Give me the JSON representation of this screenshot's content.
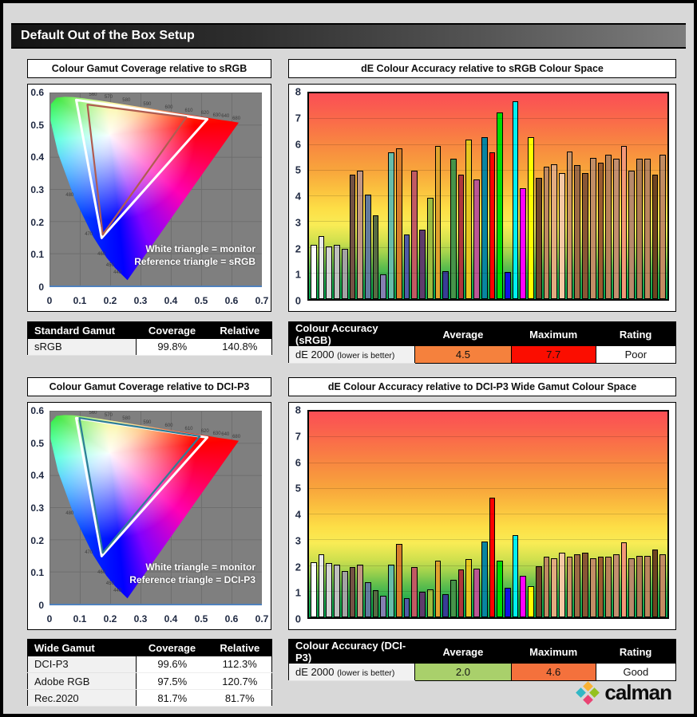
{
  "page_title": "Default Out of the Box Setup",
  "sections": [
    {
      "gamut_title": "Colour Gamut Coverage relative to sRGB",
      "accuracy_title": "dE Colour Accuracy relative to sRGB Colour Space",
      "annotation": [
        "White triangle = monitor",
        "Reference triangle = sRGB"
      ],
      "gamut_table": {
        "headers": [
          "Standard Gamut",
          "Coverage",
          "Relative"
        ],
        "rows": [
          [
            "sRGB",
            "99.8%",
            "140.8%"
          ]
        ]
      },
      "accuracy_table": {
        "headers": [
          "Colour Accuracy (sRGB)",
          "Average",
          "Maximum",
          "Rating"
        ],
        "label": "dE 2000",
        "sublabel": "(lower is better)",
        "average": "4.5",
        "average_bg": "#f5813d",
        "maximum": "7.7",
        "maximum_bg": "#fb0d00",
        "rating": "Poor"
      }
    },
    {
      "gamut_title": "Colour Gamut Coverage relative to DCI-P3",
      "accuracy_title": "dE Colour Accuracy relative to DCI-P3 Wide Gamut Colour Space",
      "annotation": [
        "White triangle = monitor",
        "Reference triangle = DCI-P3"
      ],
      "gamut_table": {
        "headers": [
          "Wide Gamut",
          "Coverage",
          "Relative"
        ],
        "rows": [
          [
            "DCI-P3",
            "99.6%",
            "112.3%"
          ],
          [
            "Adobe RGB",
            "97.5%",
            "120.7%"
          ],
          [
            "Rec.2020",
            "81.7%",
            "81.7%"
          ]
        ]
      },
      "accuracy_table": {
        "headers": [
          "Colour Accuracy (DCI-P3)",
          "Average",
          "Maximum",
          "Rating"
        ],
        "label": "dE 2000",
        "sublabel": "(lower is better)",
        "average": "2.0",
        "average_bg": "#a9d06b",
        "maximum": "4.6",
        "maximum_bg": "#f4713c",
        "rating": "Good"
      }
    }
  ],
  "logo": {
    "text": "calman",
    "diamond": {
      "top": "#f9b233",
      "right": "#95c11f",
      "bottom": "#e94373",
      "left": "#31b7c5"
    }
  },
  "cie": {
    "locus_percent": [
      [
        36.7,
        97.2
      ],
      [
        30.9,
        90.9
      ],
      [
        26.8,
        85.5
      ],
      [
        20.6,
        74.8
      ],
      [
        11.8,
        54.9
      ],
      [
        4.0,
        31.4
      ],
      [
        0.5,
        14.5
      ],
      [
        0.65,
        6.0
      ],
      [
        3.3,
        2.7
      ],
      [
        7.1,
        2.2
      ],
      [
        11.3,
        2.4
      ],
      [
        16.1,
        3.0
      ],
      [
        21.9,
        3.9
      ],
      [
        28.9,
        5.1
      ],
      [
        37.5,
        6.6
      ],
      [
        47.4,
        8.3
      ],
      [
        57.6,
        10.1
      ],
      [
        67.0,
        11.7
      ],
      [
        74.3,
        13.0
      ],
      [
        79.5,
        14.0
      ],
      [
        85.8,
        15.0
      ],
      [
        89.1,
        15.6
      ]
    ],
    "wavelength_labels": [
      [
        "560",
        20.5,
        1.2
      ],
      [
        "570",
        27.8,
        2.6
      ],
      [
        "580",
        36.2,
        4.2
      ],
      [
        "590",
        46.0,
        6.0
      ],
      [
        "600",
        56.2,
        7.8
      ],
      [
        "610",
        65.6,
        9.4
      ],
      [
        "620",
        73.2,
        10.8
      ],
      [
        "630",
        78.8,
        11.8
      ],
      [
        "640",
        82.8,
        12.6
      ],
      [
        "680",
        88.0,
        13.8
      ],
      [
        "480",
        9.5,
        53.5
      ],
      [
        "470",
        18.5,
        73.5
      ],
      [
        "460",
        24.5,
        84.0
      ],
      [
        "450",
        28.5,
        89.5
      ],
      [
        "440",
        32.0,
        93.5
      ]
    ]
  },
  "chart_data": [
    {
      "type": "area",
      "name": "cie-1976-gamut-vs-srgb",
      "title": "Colour Gamut Coverage relative to sRGB",
      "xlim": [
        0,
        0.7
      ],
      "ylim": [
        0,
        0.6
      ],
      "x_ticks": [
        "0",
        "0.1",
        "0.2",
        "0.3",
        "0.4",
        "0.5",
        "0.6",
        "0.7"
      ],
      "y_ticks": [
        "0.6",
        "0.5",
        "0.4",
        "0.3",
        "0.2",
        "0.1",
        "0"
      ],
      "monitor_triangle_uv": [
        [
          0.088,
          0.577
        ],
        [
          0.52,
          0.517
        ],
        [
          0.172,
          0.148
        ]
      ],
      "reference_triangle_uv": [
        [
          0.125,
          0.5625
        ],
        [
          0.4507,
          0.5229
        ],
        [
          0.1754,
          0.1579
        ]
      ],
      "reference_color": "#b05c50",
      "legend": [
        "White triangle = monitor",
        "Reference triangle = sRGB"
      ],
      "grid": true
    },
    {
      "type": "bar",
      "name": "de2000-vs-srgb",
      "title": "dE Colour Accuracy relative to sRGB Colour Space",
      "ylim": [
        0,
        8
      ],
      "y_ticks": [
        "8",
        "7",
        "6",
        "5",
        "4",
        "3",
        "2",
        "1",
        "0"
      ],
      "average": 4.5,
      "maximum": 7.7,
      "values": [
        2.1,
        2.45,
        2.05,
        2.1,
        1.95,
        4.85,
        5.0,
        4.05,
        3.25,
        0.95,
        5.7,
        5.85,
        2.5,
        5.0,
        2.7,
        3.95,
        5.95,
        1.1,
        5.45,
        4.85,
        6.2,
        4.65,
        6.3,
        5.7,
        7.25,
        1.05,
        7.7,
        4.3,
        6.3,
        4.7,
        5.15,
        5.25,
        4.9,
        5.75,
        5.2,
        4.9,
        5.5,
        5.3,
        5.6,
        5.45,
        5.95,
        5.0,
        5.45,
        5.45,
        4.85,
        5.6
      ],
      "bar_colors": [
        "#ffffff",
        "#e9e9e9",
        "#d4d4d4",
        "#bfbfbf",
        "#a3a3a3",
        "#735244",
        "#c29682",
        "#627a9d",
        "#576c43",
        "#8580b1",
        "#67bdaa",
        "#d67e2c",
        "#505ba6",
        "#c15a63",
        "#5e3c6c",
        "#9dbc40",
        "#e0a32e",
        "#383d96",
        "#469449",
        "#af363c",
        "#e7c71f",
        "#bb5695",
        "#0885a1",
        "#ff0000",
        "#00dc00",
        "#1212e6",
        "#00f0f0",
        "#ff00ff",
        "#ffff00",
        "#70452a",
        "#c08a62",
        "#e2ab80",
        "#f4c8a4",
        "#cc9468",
        "#9c6a46",
        "#885634",
        "#c28e66",
        "#9a5c30",
        "#b8825a",
        "#c49070",
        "#f49878",
        "#b78a6b",
        "#ae7c56",
        "#ba865e",
        "#6e4420",
        "#c28c62"
      ]
    },
    {
      "type": "area",
      "name": "cie-1976-gamut-vs-dcip3",
      "title": "Colour Gamut Coverage relative to DCI-P3",
      "xlim": [
        0,
        0.7
      ],
      "ylim": [
        0,
        0.6
      ],
      "x_ticks": [
        "0",
        "0.1",
        "0.2",
        "0.3",
        "0.4",
        "0.5",
        "0.6",
        "0.7"
      ],
      "y_ticks": [
        "0.6",
        "0.5",
        "0.4",
        "0.3",
        "0.2",
        "0.1",
        "0"
      ],
      "monitor_triangle_uv": [
        [
          0.088,
          0.577
        ],
        [
          0.52,
          0.517
        ],
        [
          0.172,
          0.148
        ]
      ],
      "reference_triangle_uv": [
        [
          0.0985,
          0.5776
        ],
        [
          0.4958,
          0.5207
        ],
        [
          0.1754,
          0.1579
        ]
      ],
      "reference_color": "#2e7e96",
      "legend": [
        "White triangle = monitor",
        "Reference triangle = DCI-P3"
      ],
      "grid": true
    },
    {
      "type": "bar",
      "name": "de2000-vs-dcip3",
      "title": "dE Colour Accuracy relative to DCI-P3 Wide Gamut Colour Space",
      "ylim": [
        0,
        8
      ],
      "y_ticks": [
        "8",
        "7",
        "6",
        "5",
        "4",
        "3",
        "2",
        "1",
        "0"
      ],
      "average": 2.0,
      "maximum": 4.6,
      "values": [
        2.15,
        2.45,
        2.1,
        2.05,
        1.8,
        1.95,
        2.05,
        1.35,
        1.05,
        0.85,
        2.05,
        2.85,
        0.75,
        1.95,
        1.0,
        1.1,
        2.2,
        0.9,
        1.45,
        1.85,
        2.25,
        1.9,
        2.95,
        4.65,
        2.2,
        1.15,
        3.2,
        1.6,
        1.2,
        2.0,
        2.35,
        2.3,
        2.5,
        2.35,
        2.45,
        2.5,
        2.3,
        2.35,
        2.35,
        2.45,
        2.9,
        2.3,
        2.4,
        2.4,
        2.65,
        2.45
      ],
      "bar_colors": [
        "#ffffff",
        "#e9e9e9",
        "#d4d4d4",
        "#bfbfbf",
        "#a3a3a3",
        "#735244",
        "#c29682",
        "#627a9d",
        "#576c43",
        "#8580b1",
        "#67bdaa",
        "#d67e2c",
        "#505ba6",
        "#c15a63",
        "#5e3c6c",
        "#9dbc40",
        "#e0a32e",
        "#383d96",
        "#469449",
        "#af363c",
        "#e7c71f",
        "#bb5695",
        "#0885a1",
        "#ff0000",
        "#00dc00",
        "#1212e6",
        "#00f0f0",
        "#ff00ff",
        "#ffff00",
        "#70452a",
        "#c08a62",
        "#e2ab80",
        "#f4c8a4",
        "#cc9468",
        "#9c6a46",
        "#885634",
        "#c28e66",
        "#9a5c30",
        "#b8825a",
        "#c49070",
        "#f49878",
        "#b78a6b",
        "#ae7c56",
        "#ba865e",
        "#6e4420",
        "#c28c62"
      ]
    }
  ]
}
